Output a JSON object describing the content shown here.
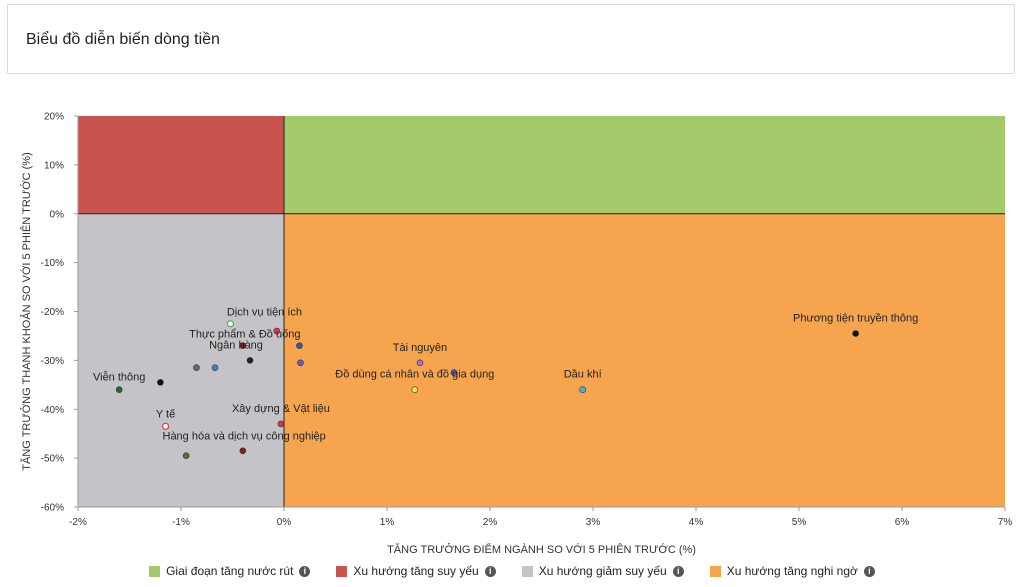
{
  "card": {
    "title": "Biểu đồ diễn biến dòng tiền"
  },
  "chart_data": {
    "type": "scatter",
    "xlabel": "TĂNG TRƯỞNG ĐIỂM NGÀNH SO VỚI 5 PHIÊN TRƯỚC (%)",
    "ylabel": "TĂNG TRƯỞNG THANH KHOẢN SO VỚI 5 PHIÊN TRƯỚC (%)",
    "xlim": [
      -2,
      7
    ],
    "ylim": [
      -60,
      20
    ],
    "xticks": [
      -2,
      -1,
      0,
      1,
      2,
      3,
      4,
      5,
      6,
      7
    ],
    "xtick_labels": [
      "-2%",
      "-1%",
      "0%",
      "1%",
      "2%",
      "3%",
      "4%",
      "5%",
      "6%",
      "7%"
    ],
    "yticks": [
      20,
      10,
      0,
      -10,
      -20,
      -30,
      -40,
      -50,
      -60
    ],
    "ytick_labels": [
      "20%",
      "10%",
      "0%",
      "-10%",
      "-20%",
      "-30%",
      "-40%",
      "-50%",
      "-60%"
    ],
    "quadrants": [
      {
        "name": "Giai đoạn tăng nước rút",
        "color": "#a3c96b",
        "x": [
          0,
          7
        ],
        "y": [
          0,
          20
        ]
      },
      {
        "name": "Xu hướng tăng suy yếu",
        "color": "#c9534f",
        "x": [
          -2,
          0
        ],
        "y": [
          0,
          20
        ]
      },
      {
        "name": "Xu hướng giảm suy yếu",
        "color": "#c4c4c8",
        "x": [
          -2,
          0
        ],
        "y": [
          -60,
          0
        ]
      },
      {
        "name": "Xu hướng tăng nghi ngờ",
        "color": "#f7a44e",
        "x": [
          0,
          7
        ],
        "y": [
          -60,
          0
        ]
      }
    ],
    "points": [
      {
        "x": -1.6,
        "y": -36,
        "color": "#1e6b2e",
        "label": "Viễn thông"
      },
      {
        "x": -1.2,
        "y": -34.5,
        "color": "#111111",
        "label": ""
      },
      {
        "x": -1.15,
        "y": -43.5,
        "color": "#ffffff",
        "stroke": "#d84040",
        "label": "Y tế"
      },
      {
        "x": -0.95,
        "y": -49.5,
        "color": "#5a6b3a",
        "label": "Hàng hóa và dịch vụ công nghiệp"
      },
      {
        "x": -0.85,
        "y": -31.5,
        "color": "#666666",
        "label": ""
      },
      {
        "x": -0.67,
        "y": -31.5,
        "color": "#4a7fb5",
        "label": ""
      },
      {
        "x": -0.52,
        "y": -22.5,
        "color": "#ffffff",
        "stroke": "#4caf50",
        "label": "Dịch vụ tiện ích"
      },
      {
        "x": -0.4,
        "y": -27,
        "color": "#8b1a1a",
        "label": "Thực phẩm & Đồ uống"
      },
      {
        "x": -0.33,
        "y": -30,
        "color": "#222222",
        "label": "Ngân hàng"
      },
      {
        "x": -0.4,
        "y": -48.5,
        "color": "#8b1a2a",
        "label": ""
      },
      {
        "x": -0.07,
        "y": -24,
        "color": "#e0334a",
        "label": ""
      },
      {
        "x": -0.03,
        "y": -43,
        "color": "#e0334a",
        "label": "Xây dựng & Vật liệu"
      },
      {
        "x": 0.15,
        "y": -27,
        "color": "#2a5db0",
        "label": ""
      },
      {
        "x": 0.16,
        "y": -30.5,
        "color": "#6a5acd",
        "label": ""
      },
      {
        "x": 1.27,
        "y": -36,
        "color": "#f2e83a",
        "label": "Đồ dùng cá nhân và đồ gia dụng"
      },
      {
        "x": 1.32,
        "y": -30.5,
        "color": "#b06ad8",
        "label": "Tài nguyên"
      },
      {
        "x": 1.65,
        "y": -32.5,
        "color": "#4a5fd0",
        "label": ""
      },
      {
        "x": 2.9,
        "y": -36,
        "color": "#3fb3e8",
        "label": "Dầu khí"
      },
      {
        "x": 5.55,
        "y": -24.5,
        "color": "#111111",
        "label": "Phương tiện truyền thông"
      }
    ]
  }
}
